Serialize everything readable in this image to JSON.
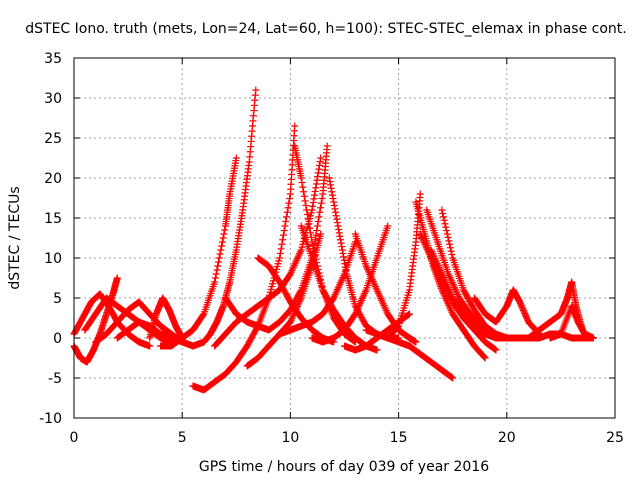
{
  "chart_data": {
    "type": "scatter",
    "title": "dSTEC Iono. truth (mets, Lon=24, Lat=60, h=100): STEC-STEC_elemax in phase cont.",
    "xlabel": "GPS time / hours of day 039 of year 2016",
    "ylabel": "dSTEC  / TECUs",
    "xlim": [
      0,
      25
    ],
    "ylim": [
      -10,
      35
    ],
    "x_ticks": [
      0,
      5,
      10,
      15,
      20,
      25
    ],
    "y_ticks": [
      -10,
      -5,
      0,
      5,
      10,
      15,
      20,
      25,
      30,
      35
    ],
    "grid": true,
    "marker": "+",
    "color": "#ff0000",
    "series": [
      {
        "x": [
          0.0,
          0.3,
          0.6,
          0.9,
          1.2,
          1.5,
          1.8,
          2.0
        ],
        "y": [
          -1.0,
          -2.5,
          -3.0,
          -1.5,
          0.5,
          3.0,
          5.5,
          7.5
        ]
      },
      {
        "x": [
          0.0,
          0.4,
          0.8,
          1.2,
          1.6,
          2.0,
          2.5,
          3.0,
          3.5
        ],
        "y": [
          0.5,
          2.5,
          4.5,
          5.5,
          4.0,
          2.0,
          0.5,
          -0.5,
          -1.0
        ]
      },
      {
        "x": [
          0.5,
          1.0,
          1.5,
          2.0,
          2.5,
          3.0,
          3.5,
          4.0,
          4.5
        ],
        "y": [
          1.0,
          3.0,
          5.0,
          4.0,
          3.0,
          2.0,
          1.0,
          0.0,
          -0.5
        ]
      },
      {
        "x": [
          1.0,
          1.5,
          2.0,
          2.5,
          3.0,
          3.5,
          4.0,
          4.5,
          5.0,
          5.5
        ],
        "y": [
          -0.5,
          0.5,
          2.0,
          3.5,
          4.5,
          3.0,
          1.5,
          0.5,
          -0.5,
          -1.0
        ]
      },
      {
        "x": [
          2.0,
          2.5,
          3.0,
          3.5,
          4.0,
          4.5,
          5.0
        ],
        "y": [
          0.0,
          1.0,
          2.0,
          1.5,
          0.5,
          0.0,
          -0.5
        ]
      },
      {
        "x": [
          3.5,
          3.8,
          4.1,
          4.4,
          4.7,
          5.0
        ],
        "y": [
          0.0,
          3.0,
          5.0,
          3.5,
          1.5,
          0.0
        ]
      },
      {
        "x": [
          4.0,
          4.5,
          5.0,
          5.5,
          6.0,
          6.5,
          7.0,
          7.2,
          7.5
        ],
        "y": [
          -1.0,
          -1.0,
          0.0,
          1.0,
          3.0,
          7.0,
          14.0,
          18.0,
          22.5
        ]
      },
      {
        "x": [
          5.5,
          6.0,
          6.3,
          6.6,
          6.9,
          7.2,
          7.5,
          7.8,
          8.1,
          8.4
        ],
        "y": [
          -1.0,
          -0.5,
          0.5,
          2.0,
          4.0,
          7.0,
          11.0,
          16.0,
          22.0,
          31.0
        ]
      },
      {
        "x": [
          5.5,
          6.0,
          6.5,
          7.0,
          7.5,
          8.0,
          8.5,
          9.0,
          9.5,
          10.0,
          10.2
        ],
        "y": [
          -6.0,
          -6.5,
          -5.5,
          -4.5,
          -3.0,
          -1.0,
          1.5,
          5.0,
          10.0,
          18.0,
          26.5
        ]
      },
      {
        "x": [
          6.5,
          7.0,
          7.5,
          8.0,
          8.5,
          9.0,
          9.5,
          10.0,
          10.5,
          11.0,
          11.4
        ],
        "y": [
          -1.0,
          0.5,
          2.0,
          3.0,
          4.0,
          5.0,
          6.0,
          8.0,
          11.0,
          16.0,
          22.5
        ]
      },
      {
        "x": [
          7.0,
          7.5,
          8.0,
          8.5,
          9.0,
          9.5,
          10.0,
          10.5,
          11.0,
          11.5,
          11.7
        ],
        "y": [
          5.0,
          3.0,
          2.0,
          1.5,
          1.0,
          2.0,
          3.5,
          6.0,
          10.0,
          18.0,
          24.0
        ]
      },
      {
        "x": [
          8.0,
          8.5,
          9.0,
          9.5,
          10.0,
          10.5,
          11.0,
          11.4
        ],
        "y": [
          -3.5,
          -2.5,
          -1.0,
          0.5,
          2.0,
          5.0,
          9.0,
          13.0
        ]
      },
      {
        "x": [
          8.5,
          9.0,
          9.5,
          10.0,
          10.5,
          11.0,
          11.5,
          12.0
        ],
        "y": [
          10.0,
          9.0,
          7.0,
          4.5,
          2.5,
          1.0,
          0.0,
          -0.5
        ]
      },
      {
        "x": [
          9.5,
          10.0,
          10.5,
          11.0,
          11.5,
          12.0,
          12.5,
          13.0
        ],
        "y": [
          0.5,
          1.0,
          1.5,
          2.0,
          3.0,
          5.0,
          8.0,
          12.0
        ]
      },
      {
        "x": [
          10.2,
          10.5,
          11.0,
          11.5,
          12.0,
          12.5,
          13.0
        ],
        "y": [
          24.0,
          20.0,
          12.0,
          6.0,
          2.5,
          0.5,
          -0.5
        ]
      },
      {
        "x": [
          10.5,
          11.0,
          11.5,
          12.0,
          12.5,
          13.0,
          13.5,
          14.0
        ],
        "y": [
          14.0,
          10.0,
          6.0,
          3.5,
          1.5,
          0.0,
          -1.0,
          -1.5
        ]
      },
      {
        "x": [
          11.0,
          11.5,
          12.0,
          12.5,
          13.0,
          13.5,
          14.0,
          14.5
        ],
        "y": [
          0.0,
          -0.5,
          0.0,
          1.0,
          3.0,
          6.0,
          10.0,
          14.0
        ]
      },
      {
        "x": [
          11.8,
          12.2,
          12.6,
          13.0,
          13.5,
          14.0,
          14.5,
          15.0
        ],
        "y": [
          20.0,
          14.0,
          8.0,
          4.0,
          1.5,
          0.5,
          0.0,
          0.0
        ]
      },
      {
        "x": [
          12.5,
          13.0,
          13.5,
          14.0,
          14.5,
          15.0,
          15.5
        ],
        "y": [
          -1.0,
          -1.5,
          -1.0,
          0.0,
          1.0,
          2.0,
          3.0
        ]
      },
      {
        "x": [
          13.0,
          13.5,
          14.0,
          14.5,
          15.0,
          15.5,
          15.8
        ],
        "y": [
          13.0,
          9.0,
          6.0,
          3.0,
          1.0,
          0.0,
          -0.5
        ]
      },
      {
        "x": [
          13.5,
          14.0,
          14.5,
          15.0,
          15.5,
          16.0,
          16.5,
          17.0,
          17.5
        ],
        "y": [
          1.0,
          0.5,
          0.0,
          -0.5,
          -1.0,
          -2.0,
          -3.0,
          -4.0,
          -5.0
        ]
      },
      {
        "x": [
          14.5,
          15.0,
          15.5,
          15.8,
          16.0
        ],
        "y": [
          0.0,
          1.5,
          6.0,
          12.0,
          18.0
        ]
      },
      {
        "x": [
          15.8,
          16.2,
          16.6,
          17.0,
          17.5,
          18.0,
          18.5,
          19.0
        ],
        "y": [
          17.0,
          13.0,
          9.0,
          6.0,
          3.0,
          1.0,
          -1.0,
          -2.5
        ]
      },
      {
        "x": [
          16.0,
          16.5,
          17.0,
          17.5,
          18.0,
          18.5,
          19.0,
          19.5
        ],
        "y": [
          13.0,
          10.0,
          7.0,
          4.5,
          2.5,
          1.0,
          -0.5,
          -1.5
        ]
      },
      {
        "x": [
          16.3,
          16.8,
          17.3,
          17.8,
          18.3,
          18.8,
          19.3,
          19.8
        ],
        "y": [
          16.0,
          12.0,
          8.0,
          5.0,
          3.0,
          1.5,
          0.5,
          0.0
        ]
      },
      {
        "x": [
          16.5,
          17.0,
          17.5,
          18.0,
          18.5,
          19.0,
          19.5,
          20.0
        ],
        "y": [
          11.0,
          8.0,
          5.0,
          3.0,
          1.5,
          0.5,
          0.0,
          0.0
        ]
      },
      {
        "x": [
          17.0,
          17.5,
          18.0,
          18.5,
          19.0,
          19.5,
          20.0,
          20.5
        ],
        "y": [
          16.0,
          10.0,
          6.0,
          3.5,
          1.5,
          0.5,
          0.0,
          0.0
        ]
      },
      {
        "x": [
          18.5,
          19.0,
          19.5,
          20.0,
          20.3,
          20.6,
          21.0,
          21.5
        ],
        "y": [
          5.0,
          3.0,
          2.0,
          4.0,
          6.0,
          4.5,
          2.0,
          0.5
        ]
      },
      {
        "x": [
          19.5,
          20.0,
          20.5,
          21.0,
          21.5,
          22.0,
          22.5,
          23.0,
          23.5,
          24.0
        ],
        "y": [
          0.0,
          0.0,
          0.0,
          0.0,
          0.0,
          0.5,
          0.5,
          0.0,
          0.0,
          0.0
        ]
      },
      {
        "x": [
          21.0,
          21.5,
          22.0,
          22.5,
          22.8,
          23.0,
          23.2,
          23.5
        ],
        "y": [
          0.0,
          1.0,
          2.0,
          3.0,
          5.0,
          7.0,
          4.0,
          1.0
        ]
      },
      {
        "x": [
          22.0,
          22.5,
          23.0,
          23.3,
          23.6,
          24.0
        ],
        "y": [
          0.0,
          0.5,
          4.0,
          2.0,
          0.5,
          0.0
        ]
      }
    ]
  }
}
